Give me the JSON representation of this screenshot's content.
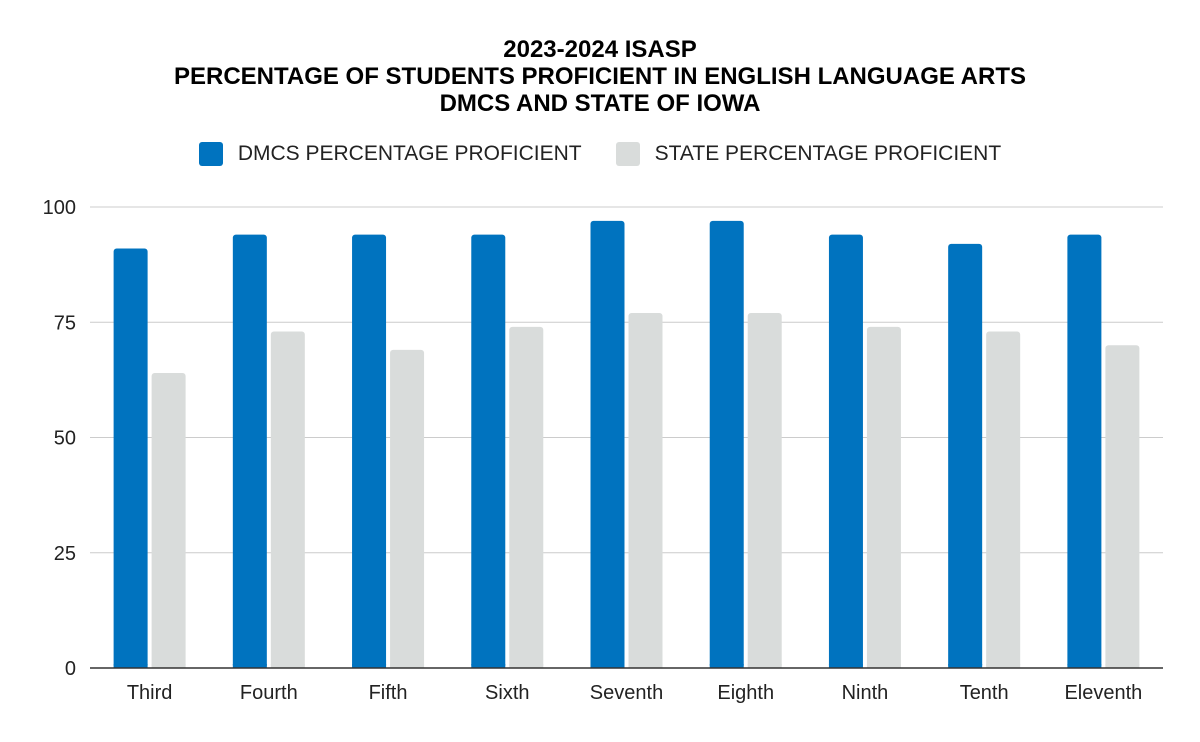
{
  "chart_data": {
    "type": "bar",
    "title_lines": [
      "2023-2024 ISASP",
      "PERCENTAGE OF STUDENTS PROFICIENT IN ENGLISH LANGUAGE ARTS",
      "DMCS AND STATE OF IOWA"
    ],
    "xlabel": "",
    "ylabel": "",
    "categories": [
      "Third",
      "Fourth",
      "Fifth",
      "Sixth",
      "Seventh",
      "Eighth",
      "Ninth",
      "Tenth",
      "Eleventh"
    ],
    "series": [
      {
        "name": "DMCS PERCENTAGE PROFICIENT",
        "color": "#0073bf",
        "values": [
          91,
          94,
          94,
          94,
          97,
          97,
          94,
          92,
          94
        ]
      },
      {
        "name": "STATE PERCENTAGE PROFICIENT",
        "color": "#d9dcdb",
        "values": [
          64,
          73,
          69,
          74,
          77,
          77,
          74,
          73,
          70
        ]
      }
    ],
    "ylim": [
      0,
      100
    ],
    "yticks": [
      0,
      25,
      50,
      75,
      100
    ],
    "grid": true,
    "legend_position": "top"
  }
}
